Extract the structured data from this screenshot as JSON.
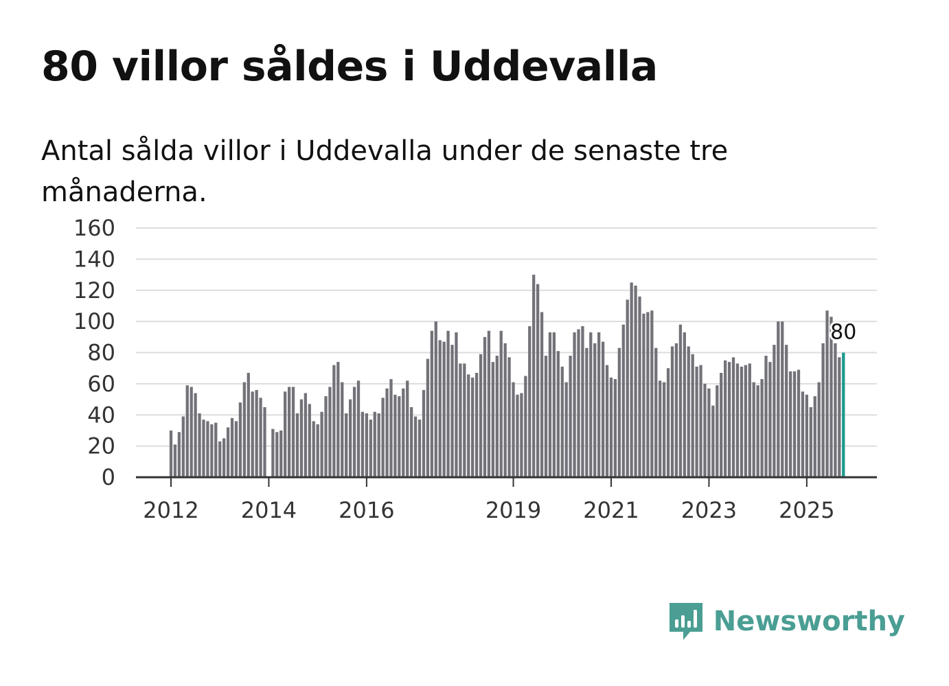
{
  "title": "80 villor såldes i Uddevalla",
  "subtitle": "Antal sålda villor i Uddevalla under de senaste tre månaderna.",
  "brand": {
    "name": "Newsworthy",
    "icon": "newsworthy-logo-icon"
  },
  "colors": {
    "bar": "#737279",
    "highlight": "#1a9a8c",
    "grid": "#dddddd",
    "axis": "#333333",
    "brand": "#4a9e93"
  },
  "chart_data": {
    "type": "bar",
    "title": "80 villor såldes i Uddevalla",
    "xlabel": "",
    "ylabel": "",
    "ylim": [
      0,
      160
    ],
    "y_ticks": [
      0,
      20,
      40,
      60,
      80,
      100,
      120,
      140,
      160
    ],
    "x_ticks": [
      {
        "label": "2012",
        "index": 0
      },
      {
        "label": "2014",
        "index": 24
      },
      {
        "label": "2016",
        "index": 48
      },
      {
        "label": "2019",
        "index": 84
      },
      {
        "label": "2021",
        "index": 108
      },
      {
        "label": "2023",
        "index": 132
      },
      {
        "label": "2025",
        "index": 156
      }
    ],
    "start": "2012-01",
    "frequency": "monthly (rolling 3-month total)",
    "values": [
      30,
      21,
      29,
      39,
      59,
      58,
      54,
      41,
      37,
      36,
      34,
      35,
      23,
      25,
      32,
      38,
      36,
      48,
      61,
      67,
      55,
      56,
      51,
      45,
      null,
      31,
      29,
      30,
      55,
      58,
      58,
      41,
      50,
      54,
      47,
      36,
      34,
      42,
      52,
      58,
      72,
      74,
      61,
      41,
      50,
      58,
      62,
      42,
      41,
      37,
      42,
      41,
      51,
      57,
      63,
      53,
      52,
      57,
      62,
      45,
      39,
      37,
      56,
      76,
      94,
      100,
      88,
      87,
      94,
      85,
      93,
      73,
      73,
      66,
      64,
      67,
      79,
      90,
      94,
      74,
      78,
      94,
      86,
      77,
      61,
      53,
      54,
      65,
      97,
      130,
      124,
      106,
      78,
      93,
      93,
      81,
      71,
      61,
      78,
      93,
      95,
      97,
      83,
      93,
      86,
      93,
      87,
      72,
      64,
      63,
      83,
      98,
      114,
      125,
      123,
      116,
      105,
      106,
      107,
      83,
      62,
      61,
      70,
      84,
      86,
      98,
      93,
      84,
      79,
      71,
      72,
      60,
      57,
      46,
      59,
      67,
      75,
      74,
      77,
      73,
      71,
      72,
      73,
      61,
      59,
      63,
      78,
      74,
      85,
      100,
      100,
      85,
      68,
      68,
      69,
      55,
      53,
      45,
      52,
      61,
      86,
      107,
      103,
      86,
      77,
      80
    ],
    "highlight_last": true,
    "last_value_label": "80"
  }
}
